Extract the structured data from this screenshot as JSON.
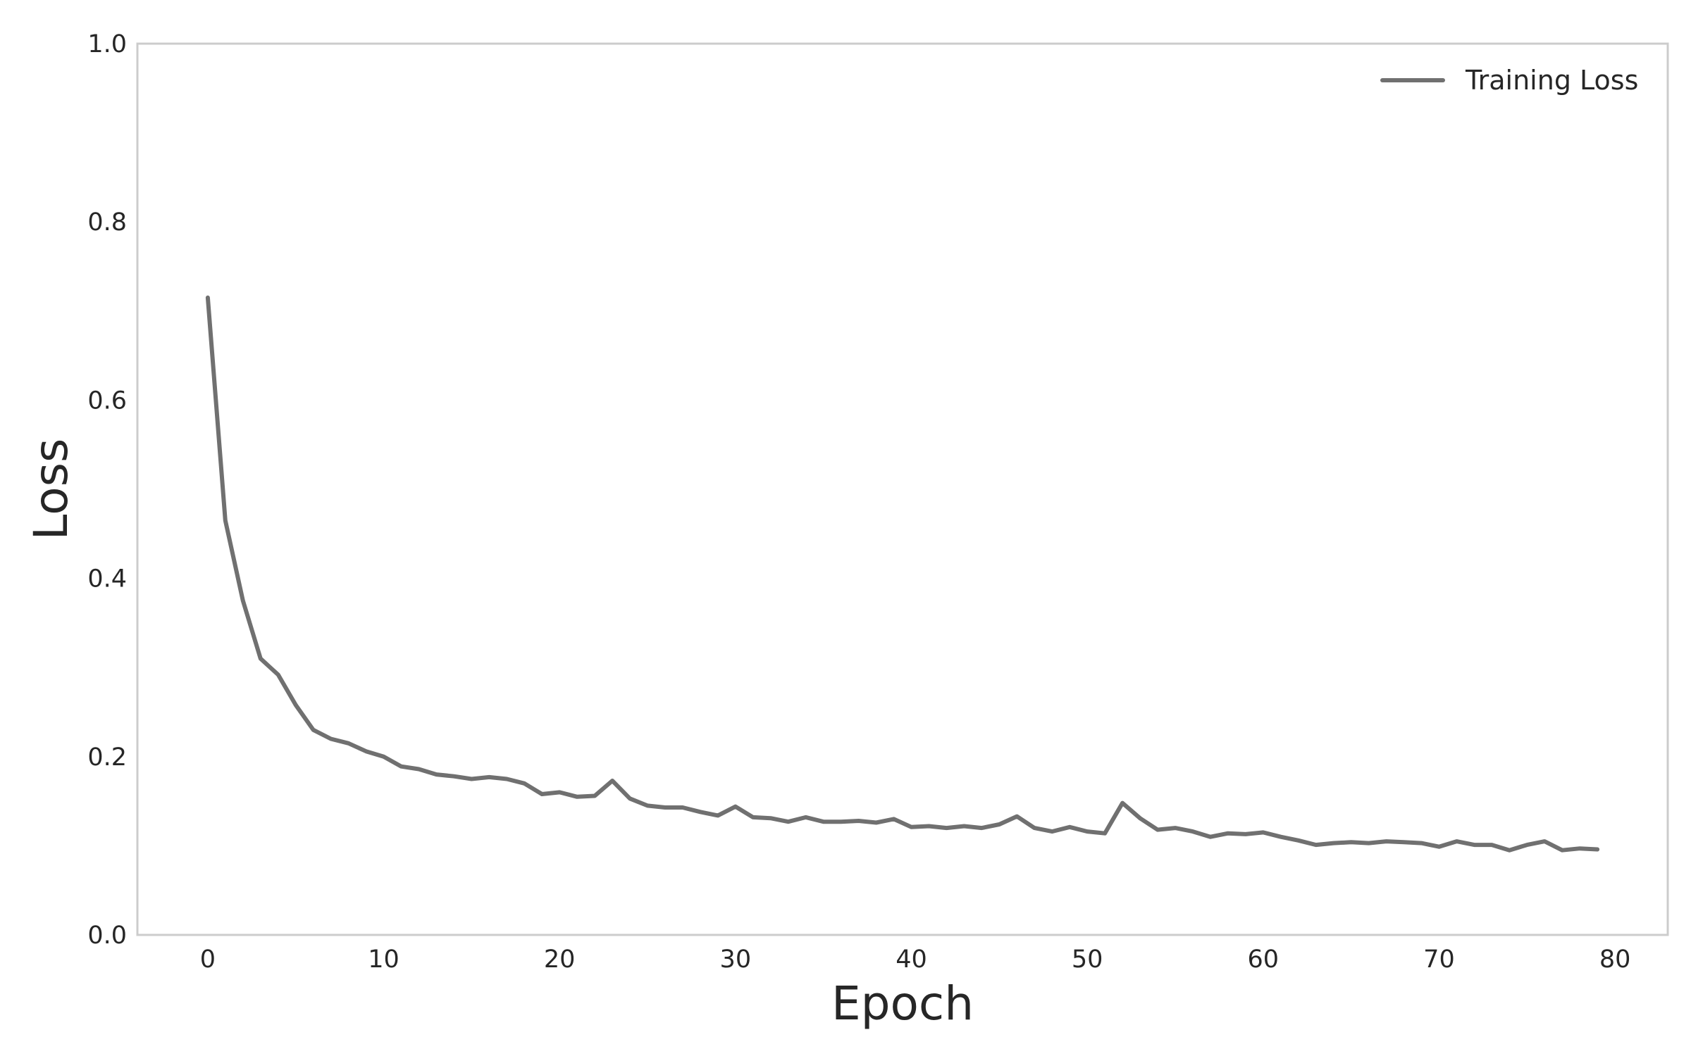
{
  "chart_data": {
    "type": "line",
    "xlabel": "Epoch",
    "ylabel": "Loss",
    "xlim": [
      -4,
      83
    ],
    "ylim": [
      0.0,
      1.0
    ],
    "xticks": [
      0,
      10,
      20,
      30,
      40,
      50,
      60,
      70,
      80
    ],
    "yticks": [
      0.0,
      0.2,
      0.4,
      0.6,
      0.8,
      1.0
    ],
    "x_tick_labels": [
      "0",
      "10",
      "20",
      "30",
      "40",
      "50",
      "60",
      "70",
      "80"
    ],
    "y_tick_labels": [
      "0.0",
      "0.2",
      "0.4",
      "0.6",
      "0.8",
      "1.0"
    ],
    "grid": false,
    "legend_position": "top-right",
    "series": [
      {
        "name": "Training Loss",
        "color": "#707070",
        "x": [
          0,
          1,
          2,
          3,
          4,
          5,
          6,
          7,
          8,
          9,
          10,
          11,
          12,
          13,
          14,
          15,
          16,
          17,
          18,
          19,
          20,
          21,
          22,
          23,
          24,
          25,
          26,
          27,
          28,
          29,
          30,
          31,
          32,
          33,
          34,
          35,
          36,
          37,
          38,
          39,
          40,
          41,
          42,
          43,
          44,
          45,
          46,
          47,
          48,
          49,
          50,
          51,
          52,
          53,
          54,
          55,
          56,
          57,
          58,
          59,
          60,
          61,
          62,
          63,
          64,
          65,
          66,
          67,
          68,
          69,
          70,
          71,
          72,
          73,
          74,
          75,
          76,
          77,
          78,
          79
        ],
        "values": [
          0.715,
          0.465,
          0.375,
          0.31,
          0.292,
          0.258,
          0.23,
          0.22,
          0.215,
          0.206,
          0.2,
          0.189,
          0.186,
          0.18,
          0.178,
          0.175,
          0.177,
          0.175,
          0.17,
          0.158,
          0.16,
          0.155,
          0.156,
          0.173,
          0.153,
          0.145,
          0.143,
          0.143,
          0.138,
          0.134,
          0.144,
          0.132,
          0.131,
          0.127,
          0.132,
          0.127,
          0.127,
          0.128,
          0.126,
          0.13,
          0.121,
          0.122,
          0.12,
          0.122,
          0.12,
          0.124,
          0.133,
          0.12,
          0.116,
          0.121,
          0.116,
          0.114,
          0.148,
          0.131,
          0.118,
          0.12,
          0.116,
          0.11,
          0.114,
          0.113,
          0.115,
          0.11,
          0.106,
          0.101,
          0.103,
          0.104,
          0.103,
          0.105,
          0.104,
          0.103,
          0.099,
          0.105,
          0.101,
          0.101,
          0.095,
          0.101,
          0.105,
          0.095,
          0.097,
          0.096
        ]
      }
    ]
  }
}
